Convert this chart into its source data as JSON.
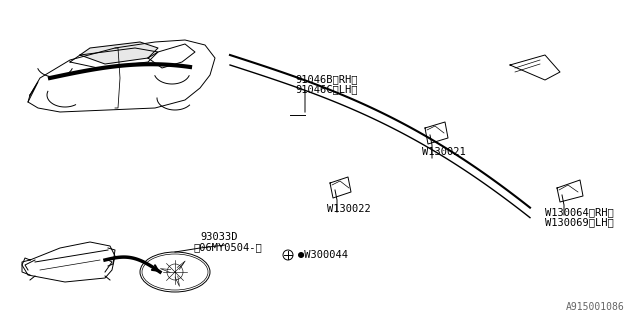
{
  "bg_color": "#ffffff",
  "line_color": "#000000",
  "diagram_id": "A915001086",
  "labels": {
    "part1": "91046B〈RH〉",
    "part1b": "91046C〈LH〉",
    "part2": "W130021",
    "part3": "W130022",
    "part4": "W130064〈RH〉",
    "part4b": "W130069〈LH〉",
    "part5": "93033D",
    "part5b": "〆06MY0504-〉",
    "part6": "W300044"
  },
  "figsize": [
    6.4,
    3.2
  ],
  "dpi": 100
}
